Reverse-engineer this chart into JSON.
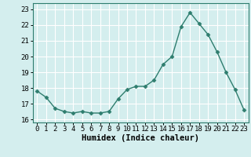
{
  "x": [
    0,
    1,
    2,
    3,
    4,
    5,
    6,
    7,
    8,
    9,
    10,
    11,
    12,
    13,
    14,
    15,
    16,
    17,
    18,
    19,
    20,
    21,
    22,
    23
  ],
  "y": [
    17.8,
    17.4,
    16.7,
    16.5,
    16.4,
    16.5,
    16.4,
    16.4,
    16.5,
    17.3,
    17.9,
    18.1,
    18.1,
    18.5,
    19.5,
    20.0,
    21.9,
    22.8,
    22.1,
    21.4,
    20.3,
    19.0,
    17.9,
    16.6
  ],
  "line_color": "#2e7d6e",
  "marker": "D",
  "markersize": 2.5,
  "linewidth": 1.0,
  "xlabel": "Humidex (Indice chaleur)",
  "xlim": [
    -0.5,
    23.5
  ],
  "ylim": [
    15.8,
    23.4
  ],
  "yticks": [
    16,
    17,
    18,
    19,
    20,
    21,
    22,
    23
  ],
  "xticks": [
    0,
    1,
    2,
    3,
    4,
    5,
    6,
    7,
    8,
    9,
    10,
    11,
    12,
    13,
    14,
    15,
    16,
    17,
    18,
    19,
    20,
    21,
    22,
    23
  ],
  "background_color": "#d4eeee",
  "grid_color": "#ffffff",
  "spine_color": "#2e7d6e",
  "tick_labelsize": 6.5,
  "xlabel_fontsize": 7.5
}
